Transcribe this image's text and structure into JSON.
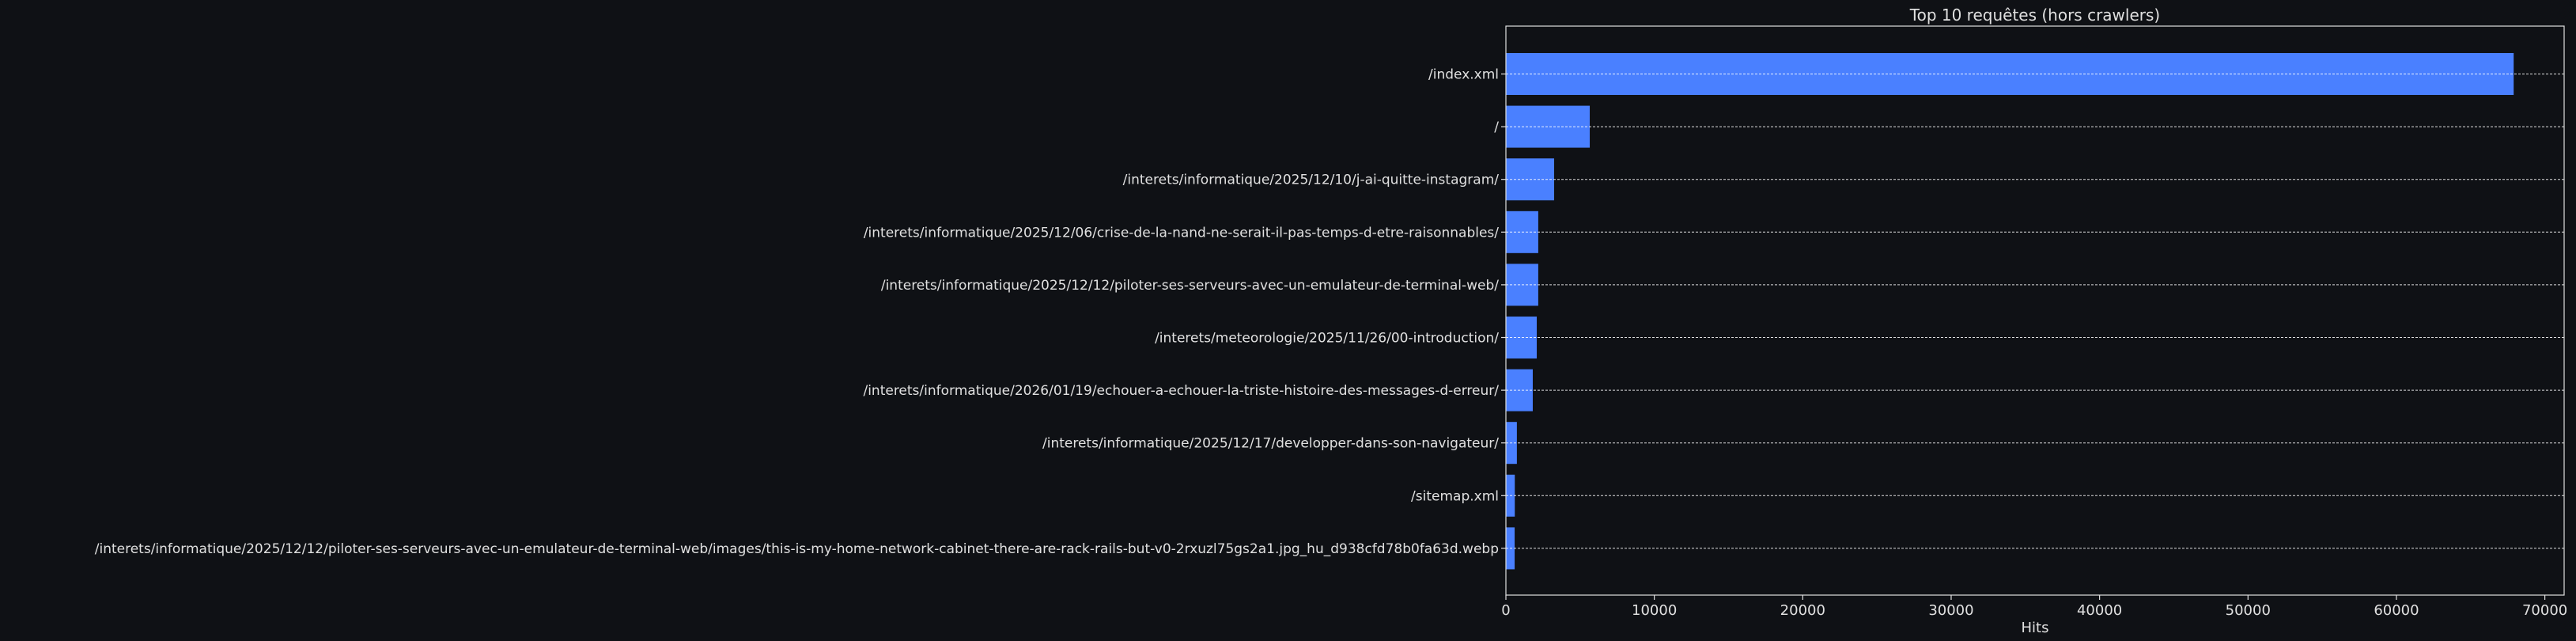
{
  "chart_data": {
    "type": "bar",
    "orientation": "horizontal",
    "title": "Top 10 requêtes (hors crawlers)",
    "xlabel": "Hits",
    "ylabel": "",
    "xlim": [
      0,
      71300
    ],
    "xticks": [
      0,
      10000,
      20000,
      30000,
      40000,
      50000,
      60000,
      70000
    ],
    "xtick_labels": [
      "0",
      "10000",
      "20000",
      "30000",
      "40000",
      "50000",
      "60000",
      "70000"
    ],
    "grid": "x-dashed at each category",
    "bar_color": "#4a80ff",
    "background": "#0f1115",
    "categories": [
      "/index.xml",
      "/",
      "/interets/informatique/2025/12/10/j-ai-quitte-instagram/",
      "/interets/informatique/2025/12/06/crise-de-la-nand-ne-serait-il-pas-temps-d-etre-raisonnables/",
      "/interets/informatique/2025/12/12/piloter-ses-serveurs-avec-un-emulateur-de-terminal-web/",
      "/interets/meteorologie/2025/11/26/00-introduction/",
      "/interets/informatique/2026/01/19/echouer-a-echouer-la-triste-histoire-des-messages-d-erreur/",
      "/interets/informatique/2025/12/17/developper-dans-son-navigateur/",
      "/sitemap.xml",
      "/interets/informatique/2025/12/12/piloter-ses-serveurs-avec-un-emulateur-de-terminal-web/images/this-is-my-home-network-cabinet-there-are-rack-rails-but-v0-2rxuzl75gs2a1.jpg_hu_d938cfd78b0fa63d.webp"
    ],
    "values": [
      67900,
      5650,
      3250,
      2180,
      2180,
      2080,
      1810,
      740,
      600,
      590
    ]
  }
}
